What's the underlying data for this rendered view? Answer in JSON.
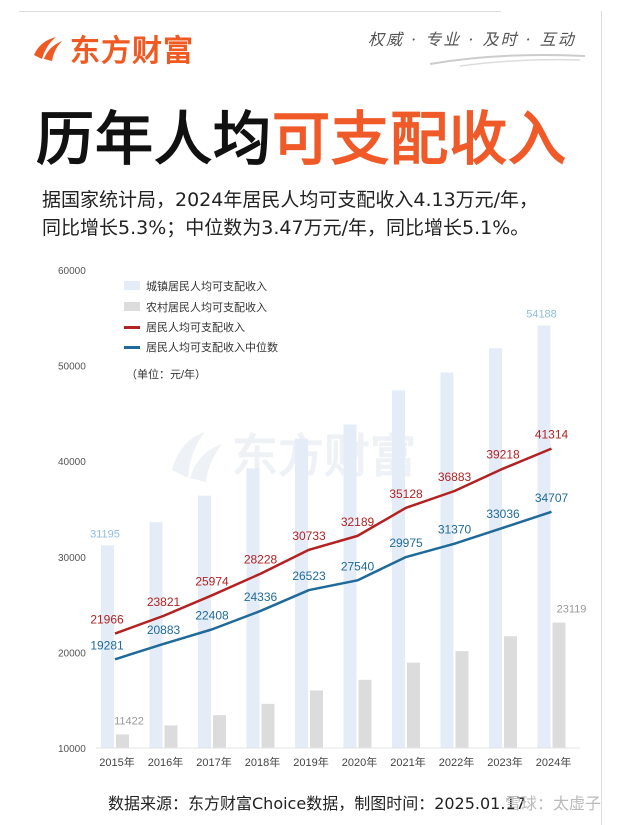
{
  "header": {
    "brand": "东方财富",
    "slogan": "权威 · 专业 · 及时 · 互动",
    "title_black": "历年人均",
    "title_orange": "可支配收入",
    "subtitle_line1": "据国家统计局，2024年居民人均可支配收入4.13万元/年，",
    "subtitle_line2": "同比增长5.3%；中位数为3.47万元/年，同比增长5.1%。"
  },
  "footer": {
    "source": "数据来源：东方财富Choice数据，制图时间：2025.01.17",
    "watermark": "雪球：太虚子"
  },
  "colors": {
    "brand": "#f05a22",
    "urban": "#e4edf7",
    "rural": "#dcdcdc",
    "mean": "#b22222",
    "median": "#1f6a99",
    "urban_label": "#8fbde0",
    "rural_label": "#999999"
  },
  "chart_data": {
    "type": "bar+line",
    "categories": [
      "2015年",
      "2016年",
      "2017年",
      "2018年",
      "2019年",
      "2020年",
      "2021年",
      "2022年",
      "2023年",
      "2024年"
    ],
    "unit_note": "（单位：元/年）",
    "ylim": [
      10000,
      60000
    ],
    "yticks": [
      10000,
      20000,
      30000,
      40000,
      50000,
      60000
    ],
    "grid": false,
    "legend_placement": "top-left",
    "watermark": "东方财富",
    "series": [
      {
        "name": "城镇居民人均可支配收入",
        "kind": "bar",
        "values": [
          31195,
          33616,
          36396,
          39251,
          42359,
          43834,
          47412,
          49283,
          51821,
          54188
        ],
        "labels": {
          "0": "31195",
          "9": "54188"
        }
      },
      {
        "name": "农村居民人均可支配收入",
        "kind": "bar",
        "values": [
          11422,
          12363,
          13432,
          14617,
          16021,
          17131,
          18931,
          20133,
          21691,
          23119
        ],
        "labels": {
          "0": "11422",
          "9": "23119"
        }
      },
      {
        "name": "居民人均可支配收入",
        "kind": "line",
        "values": [
          21966,
          23821,
          25974,
          28228,
          30733,
          32189,
          35128,
          36883,
          39218,
          41314
        ]
      },
      {
        "name": "居民人均可支配收入中位数",
        "kind": "line",
        "values": [
          19281,
          20883,
          22408,
          24336,
          26523,
          27540,
          29975,
          31370,
          33036,
          34707
        ]
      }
    ]
  }
}
